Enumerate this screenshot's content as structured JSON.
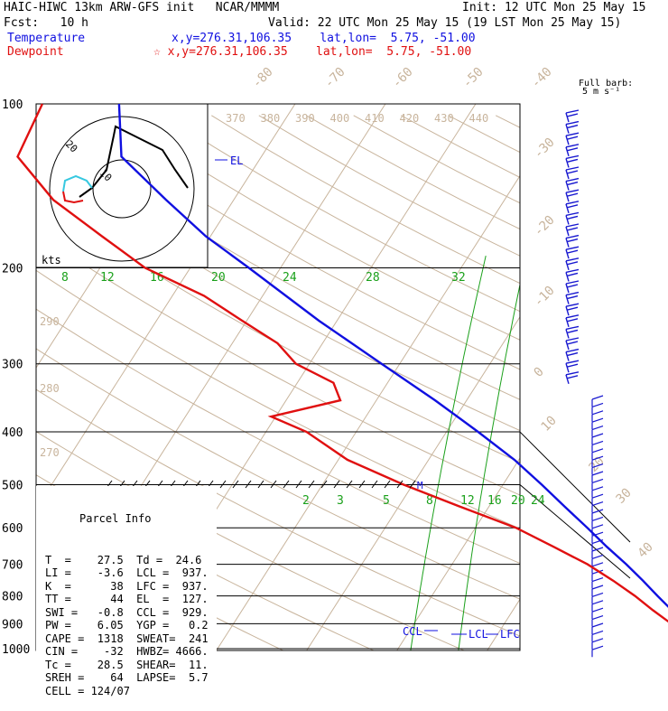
{
  "header": {
    "model": "HAIC-HIWC 13km ARW-GFS init   NCAR/MMMM",
    "init": "Init: 12 UTC Mon 25 May 15",
    "fcst": "Fcst:   10 h",
    "valid": "Valid: 22 UTC Mon 25 May 15 (19 LST Mon 25 May 15)",
    "temperature_label": "Temperature",
    "temperature_loc": "x,y=276.31,106.35    lat,lon=  5.75, -51.00",
    "dewpoint_label": "Dewpoint",
    "dewpoint_loc": "☆ x,y=276.31,106.35    lat,lon=  5.75, -51.00"
  },
  "colors": {
    "temperature": "#1010e0",
    "dewpoint": "#e01010",
    "isotherm": "#c8b49c",
    "mixing_ratio": "#1aa01a",
    "barb": "#1818d0",
    "isobar": "#000000"
  },
  "barb_key": {
    "title": "Full barb:",
    "units": "5 m s⁻¹"
  },
  "hodograph": {
    "units": "kts",
    "ring_label_1": "20",
    "ring_label_2": "10"
  },
  "chart_data": {
    "type": "skew-t",
    "pressure_levels_hPa": [
      100,
      200,
      300,
      400,
      500,
      600,
      700,
      800,
      900,
      1000
    ],
    "skewed_isotherm_labels_C": [
      "-80",
      "-70",
      "-60",
      "-50",
      "-40",
      "-30",
      "-20",
      "-10",
      "0",
      "10",
      "20",
      "30",
      "40"
    ],
    "theta_labels_K": [
      "370",
      "380",
      "390",
      "400",
      "410",
      "420",
      "430",
      "440"
    ],
    "theta_left_labels_K": [
      "290",
      "280",
      "270"
    ],
    "mixing_ratio_upper_labels": [
      "8",
      "12",
      "16",
      "20",
      "24",
      "28",
      "32"
    ],
    "mixing_ratio_lower_labels": [
      "2",
      "3",
      "5",
      "8",
      "12",
      "16",
      "20",
      "24"
    ],
    "series": [
      {
        "name": "Temperature",
        "points": [
          [
            1000,
            27.5
          ],
          [
            975,
            24
          ],
          [
            950,
            22.3
          ],
          [
            925,
            21.3
          ],
          [
            900,
            20.5
          ],
          [
            850,
            17.6
          ],
          [
            800,
            15.0
          ],
          [
            750,
            12.3
          ],
          [
            700,
            9.3
          ],
          [
            650,
            5.9
          ],
          [
            600,
            2.4
          ],
          [
            550,
            -1.5
          ],
          [
            500,
            -5.7
          ],
          [
            450,
            -10.5
          ],
          [
            400,
            -16.5
          ],
          [
            350,
            -23.5
          ],
          [
            300,
            -32.0
          ],
          [
            250,
            -42.0
          ],
          [
            200,
            -53.5
          ],
          [
            175,
            -60.5
          ],
          [
            150,
            -67.5
          ],
          [
            125,
            -75.5
          ],
          [
            100,
            -79.5
          ]
        ]
      },
      {
        "name": "Dewpoint",
        "points": [
          [
            1000,
            24.6
          ],
          [
            975,
            22.5
          ],
          [
            950,
            21.5
          ],
          [
            925,
            19.5
          ],
          [
            900,
            18.5
          ],
          [
            850,
            15.5
          ],
          [
            800,
            12.5
          ],
          [
            750,
            9.0
          ],
          [
            700,
            5.0
          ],
          [
            650,
            0.0
          ],
          [
            600,
            -5.5
          ],
          [
            550,
            -13.0
          ],
          [
            500,
            -21.0
          ],
          [
            450,
            -29.0
          ],
          [
            400,
            -35.5
          ],
          [
            375,
            -40.5
          ],
          [
            350,
            -34.0
          ],
          [
            325,
            -36.0
          ],
          [
            300,
            -41.5
          ],
          [
            275,
            -45.0
          ],
          [
            250,
            -50.5
          ],
          [
            225,
            -56.5
          ],
          [
            200,
            -65.0
          ],
          [
            175,
            -72.0
          ],
          [
            150,
            -80.0
          ],
          [
            125,
            -87.0
          ],
          [
            100,
            -88.0
          ]
        ]
      }
    ],
    "annotations": [
      "EL",
      "CCL",
      "LCL",
      "LFC",
      "M"
    ],
    "parcel_info": {
      "title": "Parcel Info",
      "rows": [
        "T  =    27.5  Td =  24.6",
        "LI =    -3.6  LCL =  937.",
        "K  =      38  LFC =  937.",
        "TT =      44  EL  =  127.",
        "SWI =   -0.8  CCL =  929.",
        "PW =    6.05  YGP =   0.2",
        "CAPE =  1318  SWEAT=  241",
        "CIN =    -32  HWBZ= 4666.",
        "Tc =    28.5  SHEAR=  11.",
        "SREH =    64  LAPSE=  5.7",
        "CELL = 124/07"
      ]
    }
  }
}
